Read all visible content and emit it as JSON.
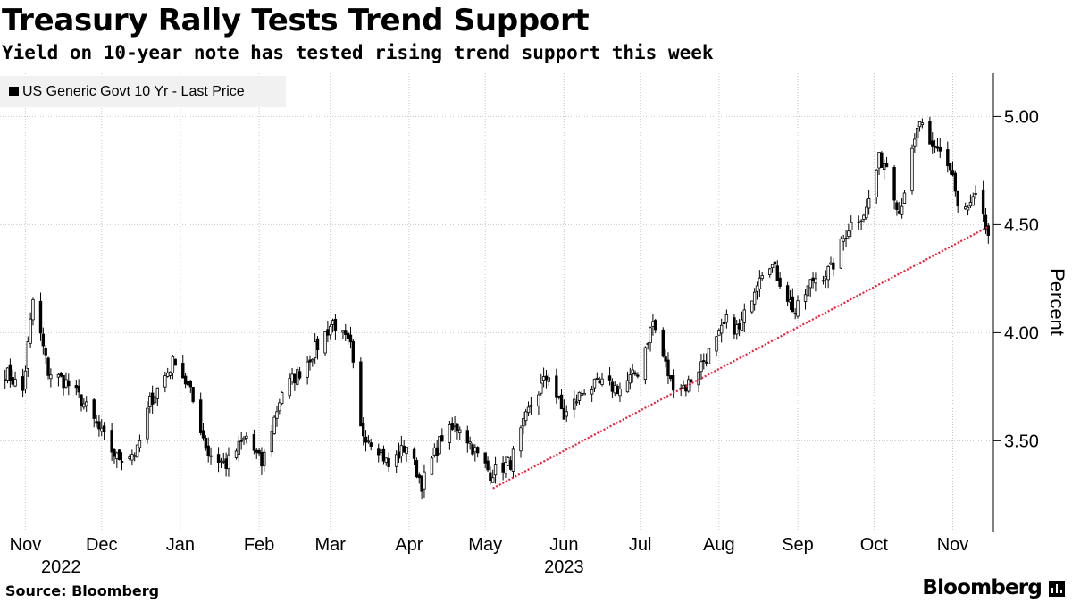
{
  "header": {
    "title": "Treasury Rally Tests Trend Support",
    "subtitle": "Yield on 10-year note has tested rising trend support this week"
  },
  "footer": {
    "source": "Source: Bloomberg",
    "brand": "Bloomberg"
  },
  "colors": {
    "candle": "#000000",
    "trendline": "#e8213c",
    "grid": "#c8c8c8",
    "legend_bg": "#f1f1f1"
  },
  "chart_data": {
    "type": "candlestick",
    "title": "Treasury Rally Tests Trend Support",
    "subtitle": "Yield on 10-year note has tested rising trend support this week",
    "legend": [
      "US Generic Govt 10 Yr - Last Price"
    ],
    "legend_placement": "top-left",
    "ylabel": "Percent",
    "ylim": [
      3.08,
      5.2
    ],
    "y_ticks": [
      3.5,
      4.0,
      4.5,
      5.0
    ],
    "y_tick_labels": [
      "3.50",
      "4.00",
      "4.50",
      "5.00"
    ],
    "x_range": [
      "2022-10-24",
      "2023-11-15"
    ],
    "x_ticks": [
      {
        "date": "2022-11-01",
        "label": "Nov"
      },
      {
        "date": "2022-12-01",
        "label": "Dec"
      },
      {
        "date": "2023-01-01",
        "label": "Jan"
      },
      {
        "date": "2023-02-01",
        "label": "Feb"
      },
      {
        "date": "2023-03-01",
        "label": "Mar"
      },
      {
        "date": "2023-04-01",
        "label": "Apr"
      },
      {
        "date": "2023-05-01",
        "label": "May"
      },
      {
        "date": "2023-06-01",
        "label": "Jun"
      },
      {
        "date": "2023-07-01",
        "label": "Jul"
      },
      {
        "date": "2023-08-01",
        "label": "Aug"
      },
      {
        "date": "2023-09-01",
        "label": "Sep"
      },
      {
        "date": "2023-10-01",
        "label": "Oct"
      },
      {
        "date": "2023-11-01",
        "label": "Nov"
      }
    ],
    "year_labels": [
      {
        "date": "2022-11-15",
        "label": "2022"
      },
      {
        "date": "2023-06-01",
        "label": "2023"
      }
    ],
    "grid": true,
    "close_anchors": [
      [
        "2022-10-24",
        3.82
      ],
      [
        "2022-10-31",
        3.73
      ],
      [
        "2022-11-04",
        4.15
      ],
      [
        "2022-11-10",
        3.82
      ],
      [
        "2022-11-17",
        3.77
      ],
      [
        "2022-11-23",
        3.69
      ],
      [
        "2022-12-01",
        3.53
      ],
      [
        "2022-12-07",
        3.42
      ],
      [
        "2022-12-15",
        3.45
      ],
      [
        "2022-12-20",
        3.68
      ],
      [
        "2022-12-30",
        3.88
      ],
      [
        "2023-01-05",
        3.72
      ],
      [
        "2023-01-12",
        3.44
      ],
      [
        "2023-01-19",
        3.39
      ],
      [
        "2023-01-27",
        3.52
      ],
      [
        "2023-02-02",
        3.39
      ],
      [
        "2023-02-10",
        3.73
      ],
      [
        "2023-02-17",
        3.82
      ],
      [
        "2023-02-24",
        3.94
      ],
      [
        "2023-03-02",
        4.05
      ],
      [
        "2023-03-09",
        3.93
      ],
      [
        "2023-03-13",
        3.55
      ],
      [
        "2023-03-20",
        3.47
      ],
      [
        "2023-03-24",
        3.38
      ],
      [
        "2023-03-31",
        3.48
      ],
      [
        "2023-04-06",
        3.3
      ],
      [
        "2023-04-14",
        3.52
      ],
      [
        "2023-04-21",
        3.57
      ],
      [
        "2023-04-28",
        3.43
      ],
      [
        "2023-05-03",
        3.35
      ],
      [
        "2023-05-11",
        3.4
      ],
      [
        "2023-05-19",
        3.67
      ],
      [
        "2023-05-26",
        3.81
      ],
      [
        "2023-06-01",
        3.61
      ],
      [
        "2023-06-09",
        3.74
      ],
      [
        "2023-06-16",
        3.76
      ],
      [
        "2023-06-23",
        3.74
      ],
      [
        "2023-06-30",
        3.82
      ],
      [
        "2023-07-06",
        4.05
      ],
      [
        "2023-07-13",
        3.77
      ],
      [
        "2023-07-19",
        3.75
      ],
      [
        "2023-07-31",
        3.96
      ],
      [
        "2023-08-04",
        4.05
      ],
      [
        "2023-08-09",
        4.01
      ],
      [
        "2023-08-17",
        4.28
      ],
      [
        "2023-08-21",
        4.33
      ],
      [
        "2023-08-25",
        4.24
      ],
      [
        "2023-08-31",
        4.09
      ],
      [
        "2023-09-07",
        4.25
      ],
      [
        "2023-09-14",
        4.29
      ],
      [
        "2023-09-21",
        4.49
      ],
      [
        "2023-09-28",
        4.57
      ],
      [
        "2023-10-03",
        4.8
      ],
      [
        "2023-10-06",
        4.78
      ],
      [
        "2023-10-11",
        4.56
      ],
      [
        "2023-10-19",
        4.98
      ],
      [
        "2023-10-23",
        4.84
      ],
      [
        "2023-10-27",
        4.85
      ],
      [
        "2023-11-01",
        4.73
      ],
      [
        "2023-11-03",
        4.57
      ],
      [
        "2023-11-07",
        4.57
      ],
      [
        "2023-11-10",
        4.62
      ],
      [
        "2023-11-15",
        4.45
      ]
    ],
    "trendline": {
      "start": [
        "2023-05-04",
        3.28
      ],
      "end": [
        "2023-11-15",
        4.49
      ],
      "style": "dotted",
      "color": "#e8213c"
    }
  }
}
